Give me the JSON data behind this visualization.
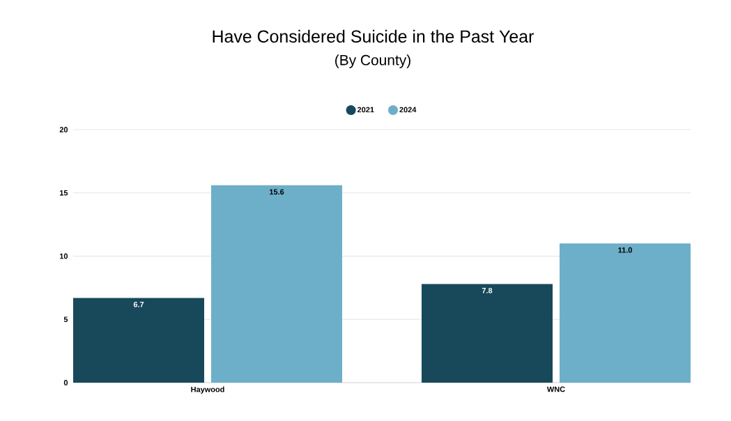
{
  "chart_data": {
    "type": "bar",
    "title": "Have Considered Suicide in the Past Year",
    "subtitle": "(By County)",
    "categories": [
      "Haywood",
      "WNC"
    ],
    "series": [
      {
        "name": "2021",
        "color": "#17495b",
        "values": [
          6.7,
          7.8
        ],
        "value_labels": [
          "6.7",
          "7.8"
        ]
      },
      {
        "name": "2024",
        "color": "#6dafc8",
        "values": [
          15.6,
          11.0
        ],
        "value_labels": [
          "15.6",
          "11.0"
        ]
      }
    ],
    "ylim": [
      0,
      20
    ],
    "yticks": [
      0,
      5,
      10,
      15,
      20
    ],
    "grid": "y",
    "legend": "top"
  }
}
